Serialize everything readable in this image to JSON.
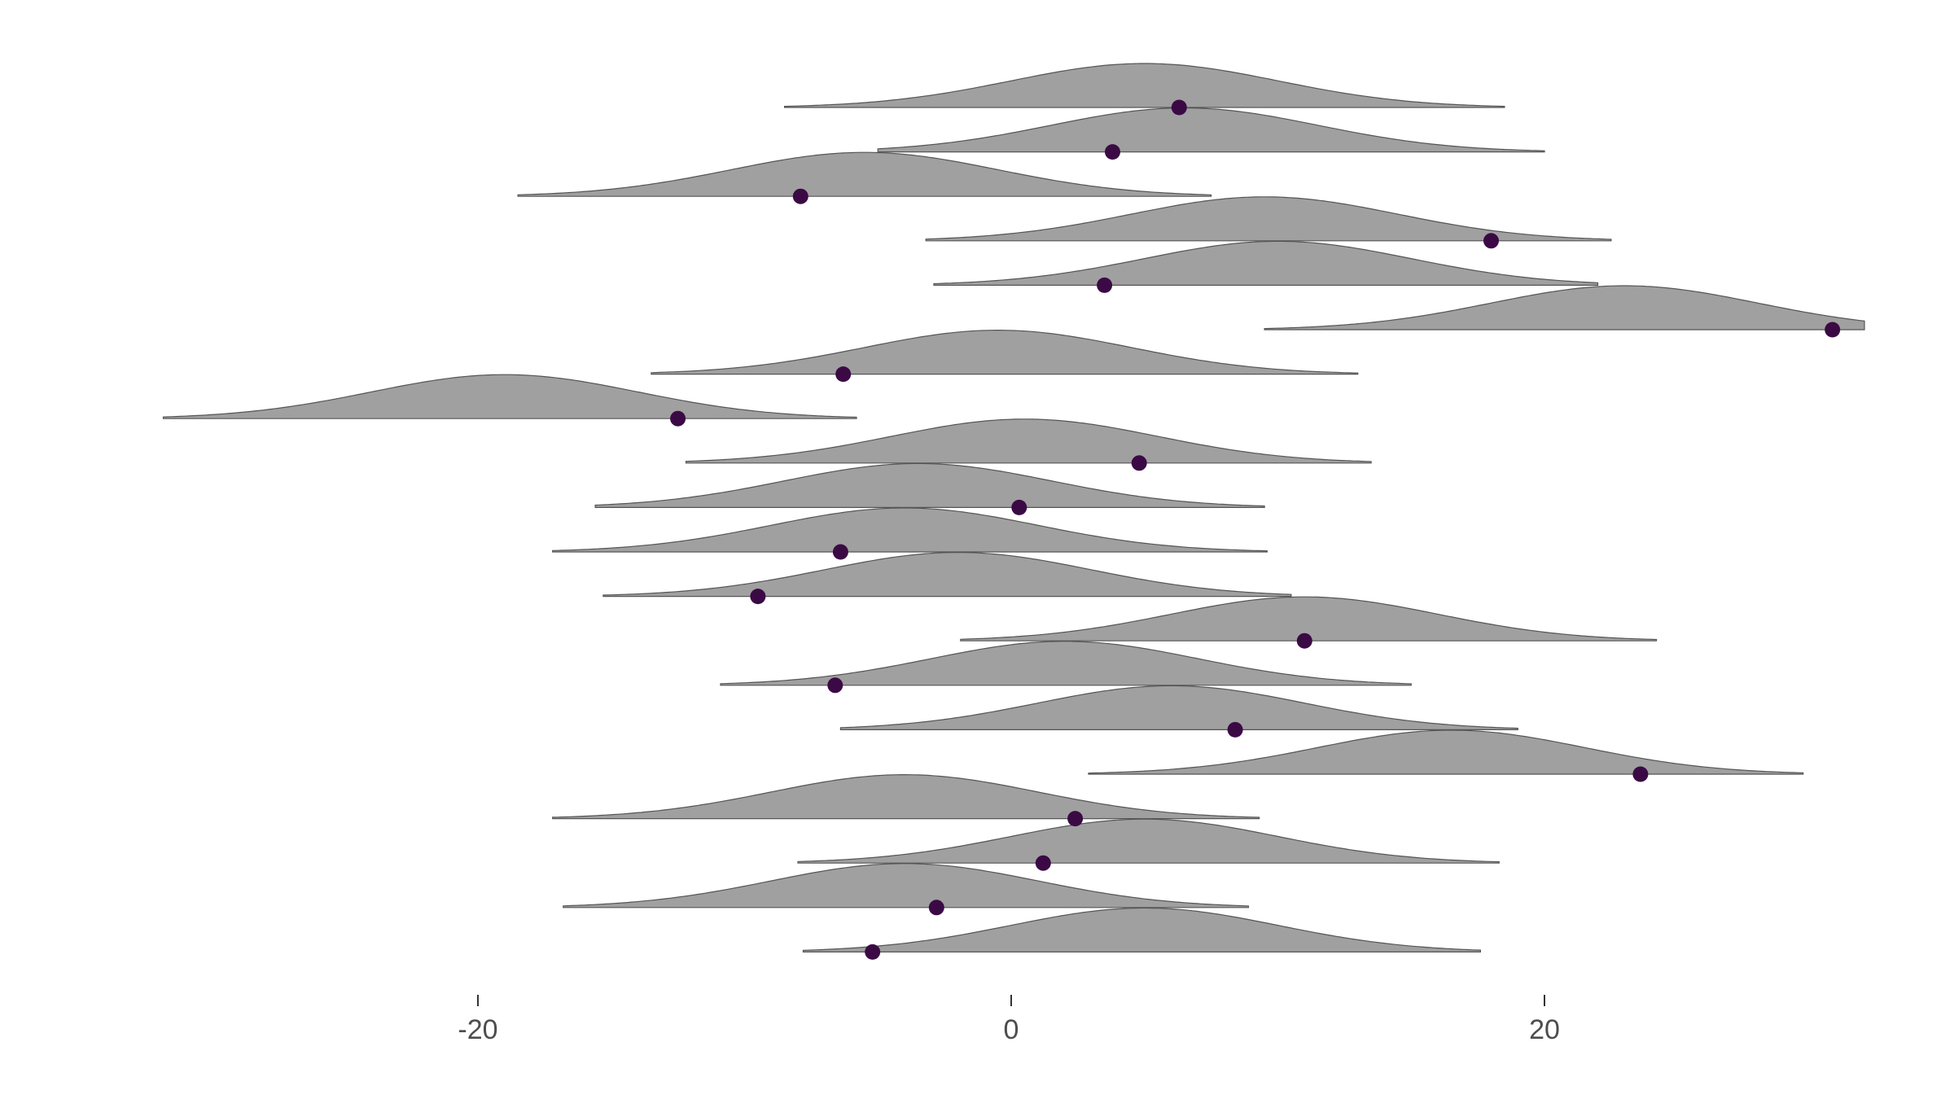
{
  "chart_data": {
    "type": "ridgeline",
    "title": "",
    "xlabel": "",
    "ylabel": "",
    "x_ticks": [
      -20,
      0,
      20
    ],
    "x_tick_labels": [
      "-20",
      "0",
      "20"
    ],
    "xlim": [
      -32,
      32
    ],
    "grid": false,
    "legend": "none",
    "colors": {
      "density_fill": "#a0a0a0",
      "density_outline": "#555555",
      "point": "#3b0a45",
      "tick_text": "#4d4d4d"
    },
    "rows": [
      {
        "mean": 5.0,
        "sd": 5.0,
        "tail_min": -8.5,
        "tail_max": 18.5,
        "point": 6.3
      },
      {
        "mean": 6.5,
        "sd": 5.0,
        "tail_min": -5.0,
        "tail_max": 20.0,
        "point": 3.8
      },
      {
        "mean": -5.5,
        "sd": 5.0,
        "tail_min": -18.5,
        "tail_max": 7.5,
        "point": -7.9
      },
      {
        "mean": 9.5,
        "sd": 5.0,
        "tail_min": -3.2,
        "tail_max": 22.5,
        "point": 18.0
      },
      {
        "mean": 10.0,
        "sd": 5.0,
        "tail_min": -2.9,
        "tail_max": 22.0,
        "point": 3.5
      },
      {
        "mean": 23.0,
        "sd": 5.0,
        "tail_min": 9.5,
        "tail_max": 32.0,
        "point": 30.8
      },
      {
        "mean": -0.5,
        "sd": 5.0,
        "tail_min": -13.5,
        "tail_max": 13.0,
        "point": -6.3
      },
      {
        "mean": -19.0,
        "sd": 5.0,
        "tail_min": -31.8,
        "tail_max": -5.8,
        "point": -12.5
      },
      {
        "mean": 0.5,
        "sd": 5.0,
        "tail_min": -12.2,
        "tail_max": 13.5,
        "point": 4.8
      },
      {
        "mean": -3.5,
        "sd": 5.0,
        "tail_min": -15.6,
        "tail_max": 9.5,
        "point": 0.3
      },
      {
        "mean": -4.0,
        "sd": 5.0,
        "tail_min": -17.2,
        "tail_max": 9.6,
        "point": -6.4
      },
      {
        "mean": -2.0,
        "sd": 5.0,
        "tail_min": -15.3,
        "tail_max": 10.5,
        "point": -9.5
      },
      {
        "mean": 11.0,
        "sd": 5.0,
        "tail_min": -1.9,
        "tail_max": 24.2,
        "point": 11.0
      },
      {
        "mean": 2.0,
        "sd": 5.0,
        "tail_min": -10.9,
        "tail_max": 15.0,
        "point": -6.6
      },
      {
        "mean": 6.0,
        "sd": 5.0,
        "tail_min": -6.4,
        "tail_max": 19.0,
        "point": 8.4
      },
      {
        "mean": 16.5,
        "sd": 5.0,
        "tail_min": 2.9,
        "tail_max": 29.7,
        "point": 23.6
      },
      {
        "mean": -4.0,
        "sd": 5.0,
        "tail_min": -17.2,
        "tail_max": 9.3,
        "point": 2.4
      },
      {
        "mean": 5.0,
        "sd": 5.0,
        "tail_min": -8.0,
        "tail_max": 18.3,
        "point": 1.2
      },
      {
        "mean": -4.0,
        "sd": 5.0,
        "tail_min": -16.8,
        "tail_max": 8.9,
        "point": -2.8
      },
      {
        "mean": 5.0,
        "sd": 5.0,
        "tail_min": -7.8,
        "tail_max": 17.6,
        "point": -5.2
      }
    ]
  }
}
